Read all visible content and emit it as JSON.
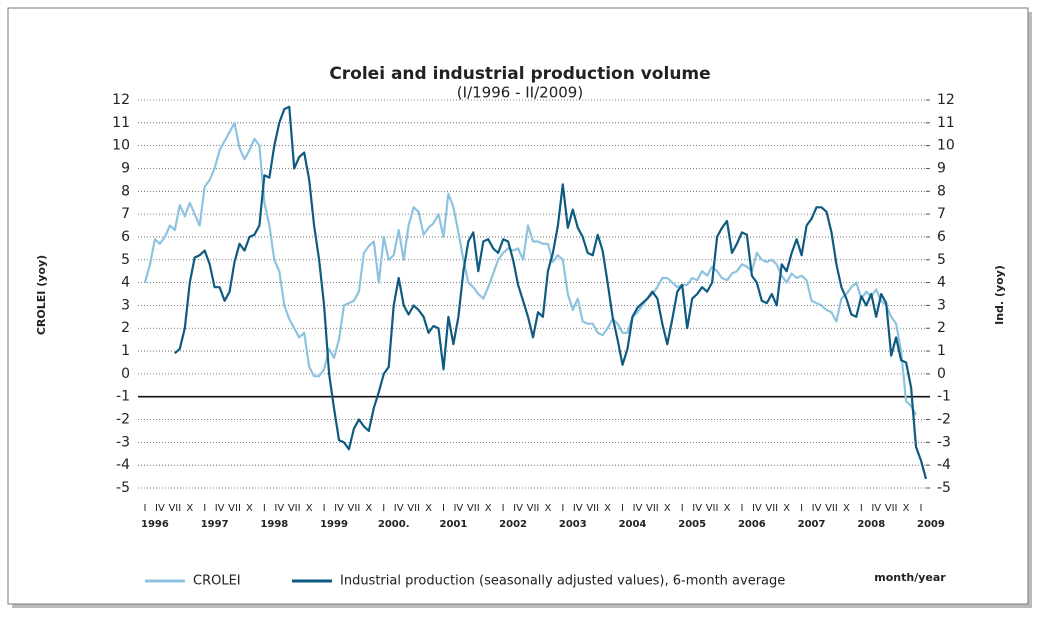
{
  "chart_data": {
    "type": "line",
    "title": "Crolei and industrial production volume",
    "subtitle": "(I/1996 - II/2009)",
    "ylabel": "CROLEI (yoy)",
    "y2label": "Ind. (yoy)",
    "xlabel": "month/year",
    "categories": [
      "I",
      null,
      null,
      "IV",
      null,
      null,
      "VII",
      null,
      null,
      "X",
      null,
      null,
      "I",
      null,
      null,
      "IV",
      null,
      null,
      "VII",
      null,
      null,
      "X",
      null,
      null,
      "I",
      null,
      null,
      "IV",
      null,
      null,
      "VII",
      null,
      null,
      "X",
      null,
      null,
      "I",
      null,
      null,
      "IV",
      null,
      null,
      "VII",
      null,
      null,
      "X",
      null,
      null,
      "I",
      null,
      null,
      "IV",
      null,
      null,
      "VII",
      null,
      null,
      "X",
      null,
      null,
      "I",
      null,
      null,
      "IV",
      null,
      null,
      "VII",
      null,
      null,
      "X",
      null,
      null,
      "I",
      null,
      null,
      "IV",
      null,
      null,
      "VII",
      null,
      null,
      "X",
      null,
      null,
      "I",
      null,
      null,
      "IV",
      null,
      null,
      "VII",
      null,
      null,
      "X",
      null,
      null,
      "I",
      null,
      null,
      "IV",
      null,
      null,
      "VII",
      null,
      null,
      "X",
      null,
      null,
      "I",
      null,
      null,
      "IV",
      null,
      null,
      "VII",
      null,
      null,
      "X",
      null,
      null,
      "I",
      null,
      null,
      "IV",
      null,
      null,
      "VII",
      null,
      null,
      "X",
      null,
      null,
      "I",
      null,
      null,
      "IV",
      null,
      null,
      "VII",
      null,
      null,
      "X",
      null,
      null,
      "I",
      null,
      null,
      "IV",
      null,
      null,
      "VII",
      null,
      null,
      "X",
      null,
      null,
      "I",
      null
    ],
    "years": [
      "1996",
      "1997",
      "1998",
      "1999",
      "2000.",
      "2001",
      "2002",
      "2003",
      "2004",
      "2005",
      "2006",
      "2007",
      "2008",
      "2009"
    ],
    "series": [
      {
        "name": "CROLEI",
        "color": "#8ec3e0",
        "values": [
          4,
          4.8,
          5.9,
          5.7,
          6.0,
          6.5,
          6.3,
          7.4,
          6.9,
          7.5,
          7.0,
          6.5,
          8.2,
          8.5,
          9,
          9.8,
          10.2,
          10.6,
          11,
          9.9,
          9.4,
          9.8,
          10.3,
          10,
          7.5,
          6.5,
          5.0,
          4.5,
          3.0,
          2.4,
          2.0,
          1.6,
          1.8,
          0.3,
          -0.1,
          -0.1,
          0.2,
          1.1,
          0.7,
          1.5,
          3.0,
          3.1,
          3.2,
          3.6,
          5.3,
          5.6,
          5.8,
          4.0,
          6.0,
          5.0,
          5.2,
          6.3,
          5.0,
          6.5,
          7.3,
          7.1,
          6.1,
          6.4,
          6.6,
          7.0,
          6.0,
          7.9,
          7.3,
          6.2,
          5.0,
          4.0,
          3.8,
          3.5,
          3.3,
          3.8,
          4.4,
          5.0,
          5.3,
          5.5,
          5.4,
          5.5,
          5.0,
          6.5,
          5.8,
          5.8,
          5.7,
          5.7,
          4.9,
          5.2,
          5.0,
          3.5,
          2.8,
          3.3,
          2.3,
          2.2,
          2.2,
          1.8,
          1.7,
          2.0,
          2.4,
          2.2,
          1.8,
          1.8,
          2.5,
          2.7,
          3.0,
          3.3,
          3.5,
          3.8,
          4.2,
          4.2,
          4.0,
          3.8,
          3.9,
          3.9,
          4.2,
          4.1,
          4.5,
          4.3,
          4.7,
          4.5,
          4.2,
          4.1,
          4.4,
          4.5,
          4.8,
          4.7,
          4.5,
          5.3,
          5.0,
          4.9,
          5.0,
          4.8,
          4.3,
          4.0,
          4.4,
          4.2,
          4.3,
          4.1,
          3.2,
          3.1,
          3.0,
          2.8,
          2.7,
          2.3,
          3.3,
          3.5,
          3.8,
          4.0,
          3.3,
          3.6,
          3.4,
          3.7,
          3.2,
          3.0,
          2.5,
          2.2,
          1.0,
          -1.2,
          -1.4,
          -1.8,
          null,
          null
        ]
      },
      {
        "name": "Industrial production (seasonally adjusted values), 6-month average",
        "color": "#0e5a80",
        "axis": "y2",
        "values": [
          null,
          null,
          null,
          null,
          null,
          null,
          0.9,
          1.1,
          2,
          4,
          5.1,
          5.2,
          5.4,
          4.8,
          3.8,
          3.8,
          3.2,
          3.6,
          4.9,
          5.7,
          5.4,
          6.0,
          6.1,
          6.5,
          8.7,
          8.6,
          10.0,
          11.0,
          11.6,
          11.7,
          9.0,
          9.5,
          9.7,
          8.5,
          6.5,
          5.0,
          3.0,
          0.0,
          -1.5,
          -2.9,
          -3.0,
          -3.3,
          -2.4,
          -2.0,
          -2.3,
          -2.5,
          -1.5,
          -0.8,
          0.0,
          0.3,
          3.0,
          4.2,
          3.0,
          2.6,
          3.0,
          2.8,
          2.5,
          1.8,
          2.1,
          2.0,
          0.2,
          2.5,
          1.3,
          2.5,
          4.5,
          5.8,
          6.2,
          4.5,
          5.8,
          5.9,
          5.5,
          5.3,
          5.9,
          5.8,
          5.0,
          3.9,
          3.2,
          2.5,
          1.6,
          2.7,
          2.5,
          4.5,
          5.3,
          6.5,
          8.3,
          6.4,
          7.2,
          6.4,
          6.0,
          5.3,
          5.2,
          6.1,
          5.4,
          4.0,
          2.5,
          1.5,
          0.4,
          1.1,
          2.5,
          2.9,
          3.1,
          3.3,
          3.6,
          3.3,
          2.2,
          1.3,
          2.4,
          3.6,
          3.9,
          2.0,
          3.3,
          3.5,
          3.8,
          3.6,
          4.0,
          6.0,
          6.4,
          6.7,
          5.3,
          5.7,
          6.2,
          6.1,
          4.3,
          4.0,
          3.2,
          3.1,
          3.5,
          3.0,
          4.8,
          4.5,
          5.3,
          5.9,
          5.2,
          6.5,
          6.8,
          7.3,
          7.3,
          7.1,
          6.2,
          4.8,
          3.8,
          3.3,
          2.6,
          2.5,
          3.4,
          3.0,
          3.5,
          2.5,
          3.5,
          3.1,
          0.8,
          1.6,
          0.6,
          0.5,
          -0.6,
          -3.2,
          -3.8,
          -4.6
        ]
      }
    ],
    "reference_line": -1,
    "ylim": [
      -5,
      12
    ],
    "yticks": [
      -5,
      -4,
      -3,
      -2,
      -1,
      0,
      1,
      2,
      3,
      4,
      5,
      6,
      7,
      8,
      9,
      10,
      11,
      12
    ],
    "y2lim": [
      -5,
      12
    ],
    "y2ticks": [
      -5,
      -4,
      -3,
      -2,
      -1,
      0,
      1,
      2,
      3,
      4,
      5,
      6,
      7,
      8,
      9,
      10,
      11,
      12
    ],
    "grid": true,
    "legend": "bottom"
  }
}
